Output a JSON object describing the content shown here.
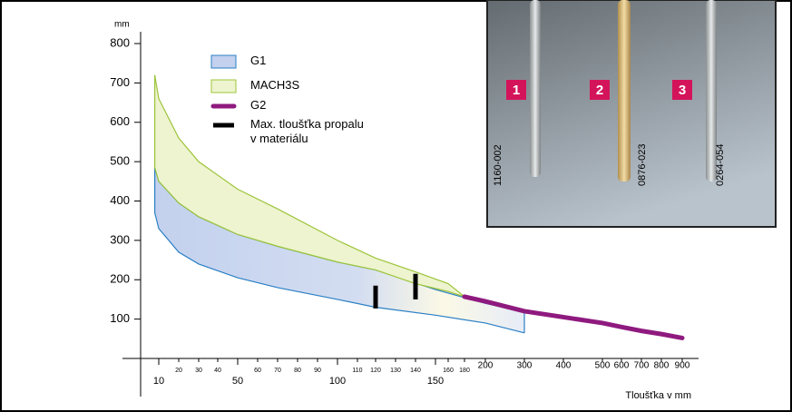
{
  "chart_data": {
    "type": "band",
    "y_unit_label": "mm",
    "x_label": "Tloušťka v mm",
    "ylim": [
      0,
      830
    ],
    "yticks": [
      100,
      200,
      300,
      400,
      500,
      600,
      700,
      800
    ],
    "xticks": [
      10,
      20,
      30,
      40,
      50,
      60,
      70,
      80,
      90,
      100,
      110,
      120,
      130,
      140,
      150,
      160,
      180,
      200,
      300,
      400,
      500,
      600,
      700,
      800,
      900
    ],
    "series": [
      {
        "name": "G1",
        "color": "#2a7fc4",
        "fill": "#c3d1ee",
        "x": [
          8,
          10,
          20,
          30,
          50,
          70,
          100,
          120,
          150,
          200,
          300
        ],
        "upper": [
          485,
          450,
          395,
          360,
          315,
          285,
          245,
          225,
          175,
          140,
          118
        ],
        "lower": [
          370,
          330,
          270,
          240,
          205,
          180,
          150,
          130,
          110,
          90,
          65
        ]
      },
      {
        "name": "MACH3S",
        "color": "#9cc43a",
        "fill": "#eef4cf",
        "x": [
          8,
          10,
          20,
          30,
          50,
          70,
          100,
          120,
          140,
          160,
          180
        ],
        "upper": [
          720,
          660,
          560,
          500,
          430,
          380,
          300,
          255,
          220,
          190,
          157
        ],
        "lower": [
          485,
          450,
          395,
          360,
          315,
          285,
          245,
          225,
          190,
          170,
          157
        ]
      },
      {
        "name": "G2",
        "color": "#8f1a7f",
        "x": [
          180,
          200,
          300,
          400,
          500,
          600,
          700,
          800,
          900
        ],
        "values": [
          157,
          145,
          120,
          105,
          90,
          80,
          70,
          62,
          52
        ]
      },
      {
        "name": "Max. tloušťka propalu\nv materiálu",
        "color": "#000000",
        "x": [
          120,
          140
        ],
        "upper": [
          185,
          215
        ],
        "lower": [
          127,
          150
        ]
      }
    ],
    "inset": {
      "numbers": [
        "1",
        "2",
        "3"
      ],
      "codes": [
        "1160-002",
        "0876-023",
        "0264-054"
      ]
    }
  }
}
